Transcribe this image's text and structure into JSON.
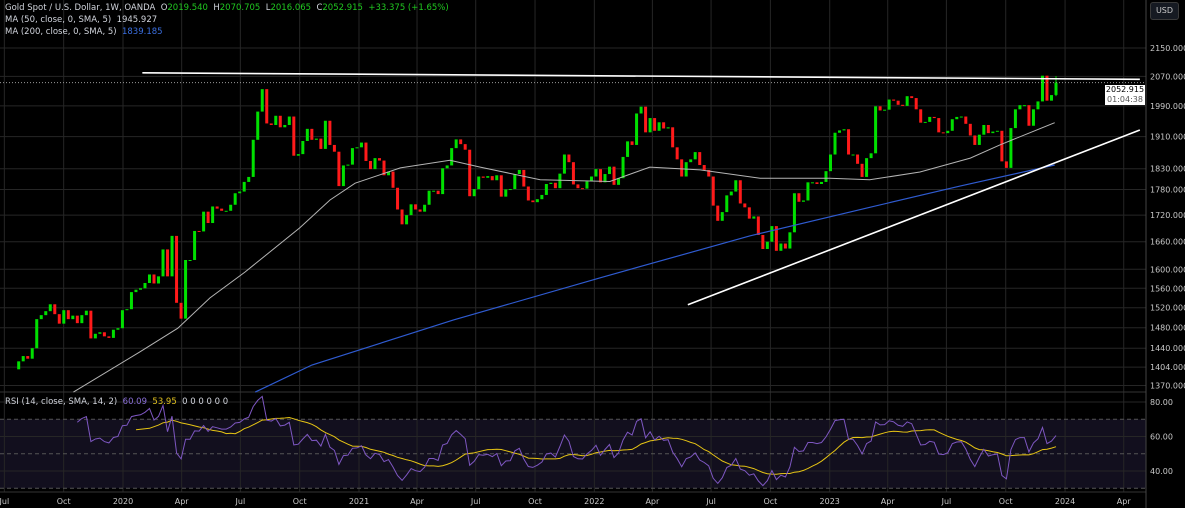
{
  "header": {
    "symbol": "Gold Spot / U.S. Dollar, 1W, OANDA",
    "o_label": "O",
    "o": "2019.540",
    "h_label": "H",
    "h": "2070.705",
    "l_label": "L",
    "l": "2016.065",
    "c_label": "C",
    "c": "2052.915",
    "change": "+33.375 (+1.65%)",
    "ma50_label": "MA (50, close, 0, SMA, 5)",
    "ma50_value": "1945.927",
    "ma200_label": "MA (200, close, 0, SMA, 5)",
    "ma200_value": "1839.185",
    "rsi_label": "RSI (14, close, SMA, 14, 2)",
    "rsi_value": "60.09",
    "rsi_ma_value": "53.95",
    "rsi_extra": "0 0 0 0 0 0"
  },
  "currency_button": "USD",
  "last_price_label": {
    "price": "2052.915",
    "countdown": "01:04:38"
  },
  "colors": {
    "background": "#000000",
    "up": "#00e000",
    "down": "#ff1a1a",
    "ma50": "#b4b4b4",
    "ma200": "#2f5bd0",
    "rsi": "#7e57c2",
    "rsi_ma": "#e6c414",
    "trendline": "#ffffff",
    "grid": "#262626"
  },
  "chart_data": {
    "type": "candlestick",
    "interval": "1W",
    "y_scale": "log",
    "ylim": [
      1360,
      2290
    ],
    "grid": true,
    "x_tick_labels": [
      {
        "date": "2019-07-01",
        "label": "Jul"
      },
      {
        "date": "2019-10-01",
        "label": "Oct"
      },
      {
        "date": "2020-01-01",
        "label": "2020"
      },
      {
        "date": "2020-04-01",
        "label": "Apr"
      },
      {
        "date": "2020-07-01",
        "label": "Jul"
      },
      {
        "date": "2020-10-01",
        "label": "Oct"
      },
      {
        "date": "2021-01-01",
        "label": "2021"
      },
      {
        "date": "2021-04-01",
        "label": "Apr"
      },
      {
        "date": "2021-07-01",
        "label": "Jul"
      },
      {
        "date": "2021-10-01",
        "label": "Oct"
      },
      {
        "date": "2022-01-01",
        "label": "2022"
      },
      {
        "date": "2022-04-01",
        "label": "Apr"
      },
      {
        "date": "2022-07-01",
        "label": "Jul"
      },
      {
        "date": "2022-10-01",
        "label": "Oct"
      },
      {
        "date": "2023-01-01",
        "label": "2023"
      },
      {
        "date": "2023-04-01",
        "label": "Apr"
      },
      {
        "date": "2023-07-01",
        "label": "Jul"
      },
      {
        "date": "2023-10-01",
        "label": "Oct"
      },
      {
        "date": "2024-01-01",
        "label": "2024"
      },
      {
        "date": "2024-04-01",
        "label": "Apr"
      }
    ],
    "y_tick_labels": [
      "2150.000",
      "2070.000",
      "1990.000",
      "1910.000",
      "1830.000",
      "1780.000",
      "1720.000",
      "1660.000",
      "1600.000",
      "1560.000",
      "1520.000",
      "1480.000",
      "1440.000",
      "1404.000",
      "1370.000"
    ],
    "rsi_tick_labels": [
      "80.00",
      "60.00",
      "40.00"
    ],
    "rsi_levels": {
      "upper": 70,
      "middle": 50,
      "lower": 30
    },
    "weekly_closes": [
      1400,
      1415,
      1425,
      1420,
      1440,
      1497,
      1505,
      1513,
      1527,
      1507,
      1488,
      1515,
      1497,
      1504,
      1489,
      1505,
      1514,
      1459,
      1468,
      1471,
      1463,
      1460,
      1476,
      1479,
      1515,
      1517,
      1552,
      1557,
      1560,
      1571,
      1589,
      1570,
      1585,
      1643,
      1585,
      1673,
      1530,
      1498,
      1620,
      1620,
      1684,
      1683,
      1728,
      1702,
      1740,
      1735,
      1730,
      1730,
      1744,
      1771,
      1775,
      1798,
      1810,
      1902,
      1975,
      2035,
      1944,
      1940,
      1964,
      1934,
      1940,
      1962,
      1862,
      1866,
      1899,
      1930,
      1902,
      1905,
      1879,
      1951,
      1889,
      1872,
      1788,
      1838,
      1840,
      1881,
      1883,
      1895,
      1849,
      1829,
      1856,
      1850,
      1814,
      1823,
      1784,
      1733,
      1699,
      1720,
      1745,
      1733,
      1728,
      1744,
      1777,
      1777,
      1769,
      1831,
      1838,
      1881,
      1903,
      1891,
      1877,
      1764,
      1781,
      1811,
      1808,
      1812,
      1802,
      1814,
      1763,
      1780,
      1781,
      1817,
      1827,
      1787,
      1754,
      1750,
      1757,
      1767,
      1793,
      1796,
      1783,
      1818,
      1865,
      1846,
      1792,
      1783,
      1782,
      1799,
      1811,
      1829,
      1797,
      1817,
      1835,
      1791,
      1807,
      1859,
      1898,
      1889,
      1970,
      1988,
      1921,
      1958,
      1925,
      1947,
      1931,
      1934,
      1883,
      1853,
      1811,
      1846,
      1853,
      1871,
      1839,
      1827,
      1811,
      1742,
      1707,
      1727,
      1766,
      1775,
      1802,
      1747,
      1738,
      1712,
      1717,
      1675,
      1644,
      1660,
      1695,
      1640,
      1656,
      1645,
      1681,
      1771,
      1751,
      1754,
      1797,
      1797,
      1793,
      1798,
      1824,
      1865,
      1920,
      1926,
      1929,
      1865,
      1865,
      1842,
      1810,
      1856,
      1868,
      1989,
      1978,
      1980,
      2007,
      2004,
      1993,
      1990,
      2016,
      2011,
      1981,
      1946,
      1948,
      1961,
      1958,
      1921,
      1919,
      1925,
      1955,
      1961,
      1962,
      1943,
      1913,
      1889,
      1915,
      1940,
      1919,
      1923,
      1925,
      1848,
      1832,
      1932,
      1981,
      1992,
      1992,
      1938,
      1981,
      2002,
      2072,
      2004,
      2019
    ],
    "last_candle": {
      "open": 2019.54,
      "high": 2070.705,
      "low": 2016.065,
      "close": 2052.915
    },
    "ma50": [
      [
        "2019-10-16",
        1358
      ],
      [
        "2020-01-27",
        1433
      ],
      [
        "2020-03-26",
        1479
      ],
      [
        "2020-05-15",
        1540
      ],
      [
        "2020-07-08",
        1594
      ],
      [
        "2020-10-01",
        1691
      ],
      [
        "2020-11-17",
        1755
      ],
      [
        "2020-12-26",
        1795
      ],
      [
        "2021-03-06",
        1832
      ],
      [
        "2021-05-22",
        1851
      ],
      [
        "2021-07-08",
        1834
      ],
      [
        "2021-10-09",
        1803
      ],
      [
        "2022-01-25",
        1799
      ],
      [
        "2022-03-28",
        1834
      ],
      [
        "2022-06-14",
        1827
      ],
      [
        "2022-09-15",
        1807
      ],
      [
        "2023-01-01",
        1807
      ],
      [
        "2023-03-04",
        1803
      ],
      [
        "2023-05-21",
        1822
      ],
      [
        "2023-08-07",
        1856
      ],
      [
        "2023-09-22",
        1889
      ],
      [
        "2023-12-16",
        1945.927
      ]
    ],
    "ma200": [
      [
        "2020-07-24",
        1358
      ],
      [
        "2020-10-20",
        1408
      ],
      [
        "2021-05-27",
        1495
      ],
      [
        "2022-01-10",
        1582
      ],
      [
        "2022-08-30",
        1673
      ],
      [
        "2023-03-01",
        1737
      ],
      [
        "2023-07-22",
        1788
      ],
      [
        "2023-12-16",
        1839.185
      ]
    ],
    "drawings": [
      {
        "kind": "resistance-line",
        "from": [
          "2020-01-31",
          2080
        ],
        "to": [
          "2024-04-26",
          2062
        ]
      },
      {
        "kind": "rising-trendline",
        "from": [
          "2022-05-26",
          1526
        ],
        "to": [
          "2024-04-26",
          1927
        ]
      }
    ]
  }
}
